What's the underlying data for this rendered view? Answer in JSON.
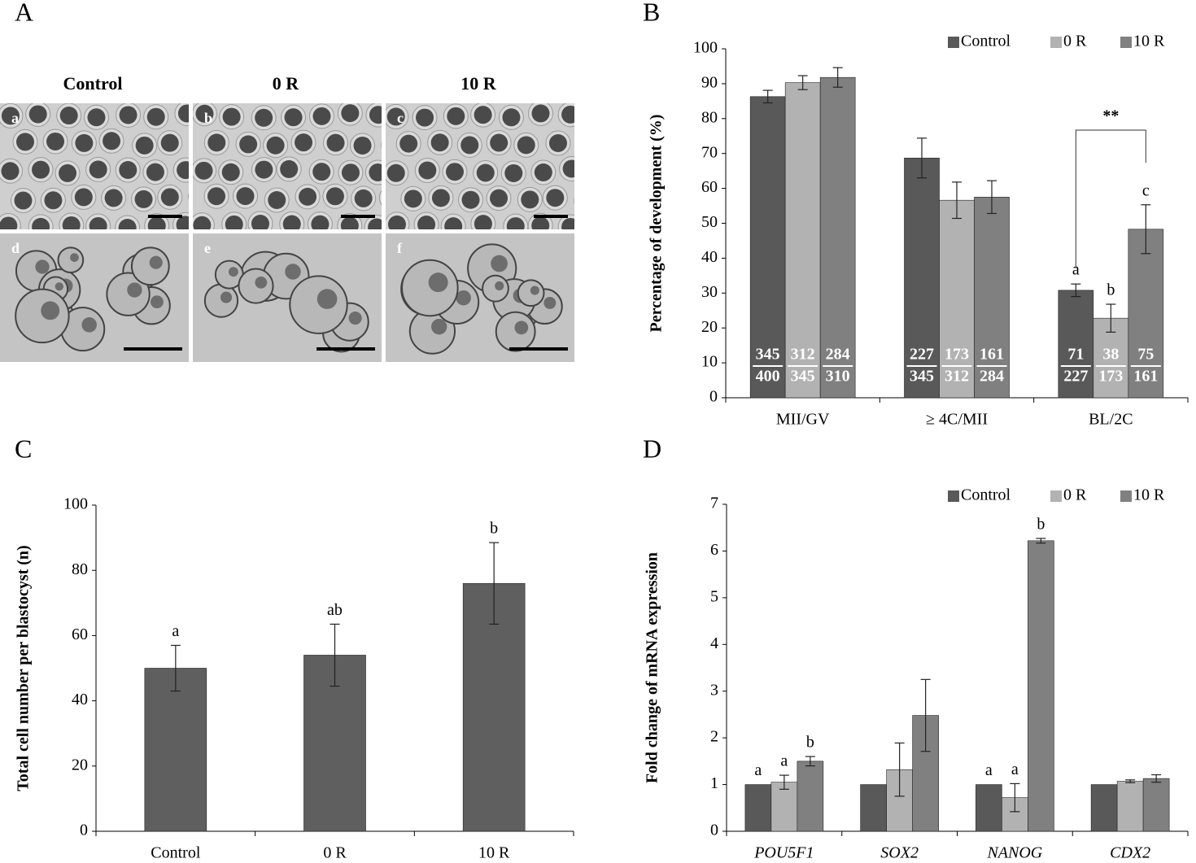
{
  "panel_labels": [
    "A",
    "B",
    "C",
    "D"
  ],
  "micrographs": {
    "columns": [
      "Control",
      "0 R",
      "10 R"
    ],
    "tiles": [
      "a",
      "b",
      "c",
      "d",
      "e",
      "f"
    ]
  },
  "chart_data": [
    {
      "type": "bar",
      "categories": [
        "MII/GV",
        "≥ 4C/MII",
        "BL/2C"
      ],
      "ylabel": "Percentage of development (%)",
      "ylim": [
        0,
        100
      ],
      "yticks": [
        0,
        10,
        20,
        30,
        40,
        50,
        60,
        70,
        80,
        90,
        100
      ],
      "legend": "top-right",
      "grid": false,
      "annotation": "**",
      "series": [
        {
          "name": "Control",
          "color": "#595959",
          "values": [
            86.3,
            68.7,
            30.8
          ],
          "errors": [
            1.8,
            5.7,
            1.8
          ],
          "letters": [
            null,
            null,
            "a"
          ],
          "numerators": [
            345,
            227,
            71
          ],
          "denominators": [
            400,
            345,
            227
          ]
        },
        {
          "name": "0 R",
          "color": "#b2b2b2",
          "values": [
            90.3,
            56.6,
            22.8
          ],
          "errors": [
            2.0,
            5.2,
            4.0
          ],
          "letters": [
            null,
            null,
            "b"
          ],
          "numerators": [
            312,
            173,
            38
          ],
          "denominators": [
            345,
            312,
            173
          ]
        },
        {
          "name": "10 R",
          "color": "#808080",
          "values": [
            91.8,
            57.5,
            48.3
          ],
          "errors": [
            2.8,
            4.7,
            7.0
          ],
          "letters": [
            null,
            null,
            "c"
          ],
          "numerators": [
            284,
            161,
            75
          ],
          "denominators": [
            310,
            284,
            161
          ]
        }
      ]
    },
    {
      "type": "bar",
      "categories": [
        "Control",
        "0 R",
        "10 R"
      ],
      "ylabel": "Total cell number per blastocyst (n)",
      "ylim": [
        0,
        100
      ],
      "yticks": [
        0,
        20,
        40,
        60,
        80,
        100
      ],
      "grid": false,
      "series": [
        {
          "color": "#5f5f5f",
          "values": [
            50,
            54,
            76
          ],
          "errors": [
            7,
            9.5,
            12.5
          ],
          "letters": [
            "a",
            "ab",
            "b"
          ]
        }
      ]
    },
    {
      "type": "bar",
      "categories": [
        "POU5F1",
        "SOX2",
        "NANOG",
        "CDX2"
      ],
      "italic_categories": true,
      "ylabel": "Fold change of mRNA expression",
      "ylim": [
        0,
        7
      ],
      "yticks": [
        0,
        1,
        2,
        3,
        4,
        5,
        6,
        7
      ],
      "legend": "top-right",
      "grid": false,
      "series": [
        {
          "name": "Control",
          "color": "#595959",
          "values": [
            1,
            1,
            1,
            1
          ],
          "errors": [
            null,
            null,
            null,
            null
          ],
          "letters": [
            "a",
            null,
            "a",
            null
          ]
        },
        {
          "name": "0 R",
          "color": "#b2b2b2",
          "values": [
            1.05,
            1.32,
            0.72,
            1.07
          ],
          "errors": [
            0.15,
            0.57,
            0.3,
            0.03
          ],
          "letters": [
            "a",
            null,
            "a",
            null
          ]
        },
        {
          "name": "10 R",
          "color": "#808080",
          "values": [
            1.5,
            2.48,
            6.22,
            1.13
          ],
          "errors": [
            0.1,
            0.77,
            0.05,
            0.08
          ],
          "letters": [
            "b",
            null,
            "b",
            null
          ]
        }
      ]
    }
  ]
}
